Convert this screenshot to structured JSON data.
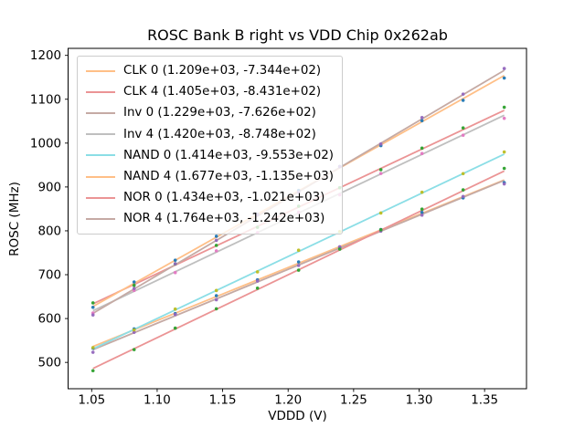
{
  "figure": {
    "background": "#ffffff"
  },
  "chart_data": {
    "type": "scatter",
    "title": "ROSC Bank B right vs VDD Chip 0x262ab",
    "xlabel": "VDDD (V)",
    "ylabel": "ROSC (MHz)",
    "xlim": [
      1.032,
      1.382
    ],
    "ylim": [
      440,
      1216
    ],
    "xticks": [
      1.05,
      1.1,
      1.15,
      1.2,
      1.25,
      1.3,
      1.35
    ],
    "yticks": [
      500,
      600,
      700,
      800,
      900,
      1000,
      1100,
      1200
    ],
    "grid": false,
    "legend_position": "upper-left",
    "x": [
      1.051,
      1.0824,
      1.1138,
      1.1452,
      1.1766,
      1.208,
      1.2394,
      1.2708,
      1.3022,
      1.3336,
      1.365
    ],
    "series": [
      {
        "name": "CLK 0",
        "legend_label": "CLK 0 (1.209e+03, -7.344e+02)",
        "fit_slope": 1209,
        "fit_intercept": -734.4,
        "line_color": "#ffbf87",
        "marker_color": "#1f77b4",
        "y": [
          532.3,
          576.3,
          611.2,
          652.2,
          688.2,
          729.1,
          762.1,
          803.0,
          842.0,
          875.0,
          909.9
        ]
      },
      {
        "name": "CLK 4",
        "legend_label": "CLK 4 (1.405e+03, -8.431e+02)",
        "fit_slope": 1405,
        "fit_intercept": -843.1,
        "line_color": "#eb9495",
        "marker_color": "#2ca02c",
        "y": [
          635.6,
          675.7,
          724.8,
          766.9,
          808.1,
          856.2,
          898.3,
          939.4,
          988.5,
          1034.6,
          1081.7
        ]
      },
      {
        "name": "Inv 0",
        "legend_label": "Inv 0 (1.229e+03, -7.626e+02)",
        "fit_slope": 1229,
        "fit_intercept": -762.6,
        "line_color": "#c5aaa4",
        "marker_color": "#9467bd",
        "y": [
          523.1,
          568.7,
          609.3,
          642.9,
          685.5,
          721.1,
          763.7,
          799.3,
          835.8,
          878.4,
          907.0
        ]
      },
      {
        "name": "Inv 4",
        "legend_label": "Inv 4 (1.420e+03, -8.748e+02)",
        "fit_slope": 1420,
        "fit_intercept": -874.8,
        "line_color": "#bfbfbf",
        "marker_color": "#e377c2",
        "y": [
          612.6,
          664.2,
          704.8,
          754.4,
          796.0,
          842.5,
          882.1,
          930.7,
          976.3,
          1017.9,
          1056.5
        ]
      },
      {
        "name": "NAND 0",
        "legend_label": "NAND 0 (1.414e+03, -9.553e+02)",
        "fit_slope": 1414,
        "fit_intercept": -955.3,
        "line_color": "#8bdee6",
        "marker_color": "#bcbd22",
        "y": [
          533.8,
          574.2,
          621.6,
          664.0,
          706.4,
          755.8,
          798.2,
          840.6,
          888.0,
          930.4,
          979.8
        ]
      },
      {
        "name": "NAND 4",
        "legend_label": "NAND 4 (1.677e+03, -1.135e+03)",
        "fit_slope": 1677,
        "fit_intercept": -1135,
        "line_color": "#ffbf87",
        "marker_color": "#1f77b4",
        "y": [
          625.7,
          683.4,
          733.0,
          787.7,
          837.4,
          892.0,
          946.7,
          994.3,
          1051.0,
          1097.6,
          1148.3
        ]
      },
      {
        "name": "NOR 0",
        "legend_label": "NOR 0 (1.434e+03, -1.021e+03)",
        "fit_slope": 1434,
        "fit_intercept": -1021,
        "line_color": "#eb9495",
        "marker_color": "#2ca02c",
        "y": [
          481.1,
          529.2,
          578.2,
          622.2,
          669.3,
          710.3,
          758.3,
          802.3,
          849.4,
          893.4,
          942.4
        ]
      },
      {
        "name": "NOR 4",
        "legend_label": "NOR 4 (1.764e+03, -1.242e+03)",
        "fit_slope": 1764,
        "fit_intercept": -1242,
        "line_color": "#c5aaa4",
        "marker_color": "#9467bd",
        "y": [
          608.2,
          668.6,
          725.0,
          778.3,
          836.7,
          888.1,
          946.5,
          997.9,
          1058.3,
          1111.6,
          1170.0
        ]
      }
    ]
  }
}
